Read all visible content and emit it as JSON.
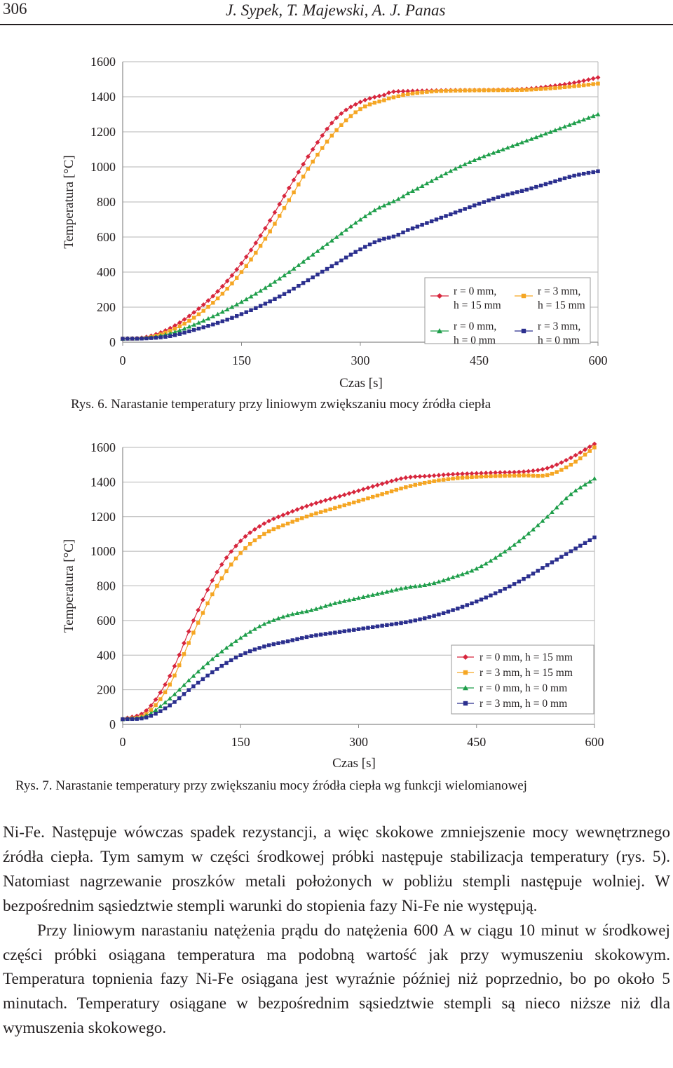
{
  "header": {
    "page_number": "306",
    "authors": "J. Sypek, T. Majewski, A. J. Panas"
  },
  "figures": [
    {
      "caption": "Rys. 6. Narastanie temperatury przy liniowym zwiększaniu mocy źródła ciepła",
      "legend_layout": "2x2"
    },
    {
      "caption": "Rys. 7. Narastanie temperatury przy zwiększaniu mocy źródła ciepła wg funkcji wielomianowej",
      "legend_layout": "column"
    }
  ],
  "chart_data": [
    {
      "type": "line",
      "title": "",
      "xlabel": "Czas [s]",
      "ylabel": "Temperatura [°C]",
      "xlim": [
        0,
        600
      ],
      "ylim": [
        0,
        1600
      ],
      "xticks": [
        "0",
        "150",
        "300",
        "450",
        "600"
      ],
      "yticks": [
        "0",
        "200",
        "400",
        "600",
        "800",
        "1000",
        "1200",
        "1400",
        "1600"
      ],
      "grid": "horizontal",
      "legend_position": "bottom-right",
      "x": [
        0,
        30,
        60,
        90,
        120,
        150,
        180,
        210,
        240,
        270,
        300,
        330,
        340,
        360,
        390,
        420,
        450,
        480,
        510,
        540,
        570,
        600
      ],
      "series": [
        {
          "name": "r = 0 mm, h = 15 mm",
          "legend_lines": [
            "r = 0 mm,",
            "h = 15 mm"
          ],
          "color": "#d7263d",
          "marker": "diamond",
          "values": [
            20,
            30,
            80,
            170,
            290,
            450,
            650,
            880,
            1100,
            1280,
            1370,
            1410,
            1428,
            1432,
            1435,
            1437,
            1438,
            1440,
            1445,
            1460,
            1480,
            1510
          ]
        },
        {
          "name": "r = 3 mm, h = 15 mm",
          "legend_lines": [
            "r = 3 mm,",
            "h = 15 mm"
          ],
          "color": "#f5a623",
          "marker": "square",
          "values": [
            20,
            25,
            65,
            140,
            250,
            400,
            590,
            810,
            1030,
            1210,
            1330,
            1380,
            1395,
            1415,
            1430,
            1435,
            1437,
            1438,
            1440,
            1448,
            1460,
            1475
          ]
        },
        {
          "name": "r = 0 mm, h = 0 mm",
          "legend_lines": [
            "r = 0 mm,",
            "h = 0 mm"
          ],
          "color": "#1e9e4a",
          "marker": "triangle",
          "values": [
            20,
            25,
            50,
            100,
            160,
            230,
            310,
            400,
            500,
            600,
            700,
            780,
            800,
            850,
            920,
            990,
            1050,
            1100,
            1150,
            1200,
            1250,
            1300
          ]
        },
        {
          "name": "r = 3 mm, h = 0 mm",
          "legend_lines": [
            "r = 3 mm,",
            "h = 0 mm"
          ],
          "color": "#2b2f8e",
          "marker": "square",
          "values": [
            20,
            22,
            35,
            70,
            110,
            160,
            220,
            290,
            370,
            450,
            530,
            590,
            600,
            640,
            690,
            740,
            790,
            835,
            870,
            910,
            950,
            975
          ]
        }
      ]
    },
    {
      "type": "line",
      "title": "",
      "xlabel": "Czas [s]",
      "ylabel": "Temperatura [°C]",
      "xlim": [
        0,
        600
      ],
      "ylim": [
        0,
        1600
      ],
      "xticks": [
        "0",
        "150",
        "300",
        "450",
        "600"
      ],
      "yticks": [
        "0",
        "200",
        "400",
        "600",
        "800",
        "1000",
        "1200",
        "1400",
        "1600"
      ],
      "grid": "horizontal",
      "legend_position": "bottom-right",
      "x": [
        0,
        30,
        60,
        90,
        120,
        150,
        180,
        210,
        240,
        270,
        300,
        330,
        360,
        390,
        420,
        450,
        480,
        510,
        540,
        570,
        600
      ],
      "series": [
        {
          "name": "r = 0 mm, h = 15 mm",
          "color": "#d7263d",
          "marker": "diamond",
          "values": [
            30,
            80,
            280,
            600,
            880,
            1060,
            1160,
            1220,
            1270,
            1310,
            1350,
            1390,
            1425,
            1435,
            1445,
            1450,
            1455,
            1460,
            1480,
            1540,
            1620
          ]
        },
        {
          "name": "r = 3 mm, h = 15 mm",
          "color": "#f5a623",
          "marker": "square",
          "values": [
            30,
            60,
            230,
            530,
            800,
            990,
            1100,
            1160,
            1210,
            1250,
            1290,
            1330,
            1370,
            1400,
            1420,
            1430,
            1435,
            1438,
            1440,
            1500,
            1600
          ]
        },
        {
          "name": "r = 0 mm, h = 0 mm",
          "color": "#1e9e4a",
          "marker": "triangle",
          "values": [
            30,
            50,
            150,
            280,
            400,
            500,
            580,
            630,
            660,
            700,
            730,
            760,
            790,
            810,
            850,
            900,
            980,
            1080,
            1200,
            1330,
            1420
          ]
        },
        {
          "name": "r = 3 mm, h = 0 mm",
          "color": "#2b2f8e",
          "marker": "square",
          "values": [
            30,
            40,
            110,
            220,
            320,
            400,
            450,
            480,
            510,
            530,
            550,
            570,
            590,
            620,
            660,
            710,
            770,
            840,
            920,
            1000,
            1080
          ]
        }
      ]
    }
  ],
  "body": {
    "paragraph1": "Ni-Fe. Następuje wówczas spadek rezystancji, a więc skokowe zmniejszenie mocy wewnętrznego źródła ciepła. Tym samym w części środkowej próbki następuje stabilizacja temperatury (rys. 5). Natomiast nagrzewanie proszków metali położonych w pobliżu stempli następuje wolniej. W bezpośrednim sąsiedztwie stempli warunki do stopienia fazy Ni-Fe nie występują.",
    "paragraph2": "Przy liniowym narastaniu natężenia prądu do natężenia 600 A w ciągu 10 minut w środkowej części próbki osiągana temperatura ma podobną wartość jak przy wymuszeniu skokowym. Temperatura topnienia fazy Ni-Fe osiągana jest wyraźnie później niż poprzednio, bo po około 5 minutach. Temperatury osiągane w bezpośrednim sąsiedztwie stempli są nieco niższe niż dla wymuszenia skokowego."
  }
}
